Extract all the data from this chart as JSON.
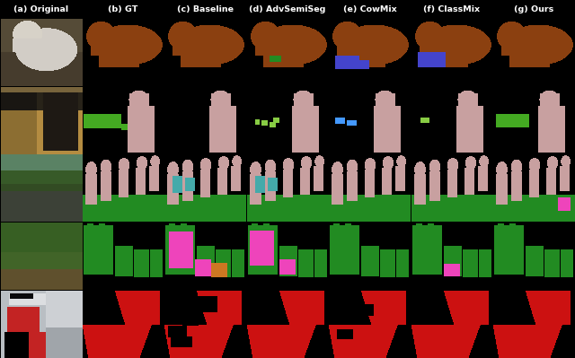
{
  "col_labels": [
    "(a) Original",
    "(b) GT",
    "(c) Baseline",
    "(d) AdvSemiSeg",
    "(e) CowMix",
    "(f) ClassMix",
    "(g) Ours"
  ],
  "n_cols": 7,
  "n_rows": 5,
  "bear_brown": "#8B4010",
  "person_pink": "#c8a0a0",
  "train_green": "#44aa22",
  "bike_green": "#228B22",
  "cow_green": "#228B22",
  "plane_red": "#cc1111",
  "misclass_pink": "#ee44bb",
  "misclass_orange": "#cc7722",
  "teal": "#44aaaa",
  "blue_purp": "#4444cc",
  "lime_green": "#88cc44",
  "sky_blue": "#4499ff"
}
